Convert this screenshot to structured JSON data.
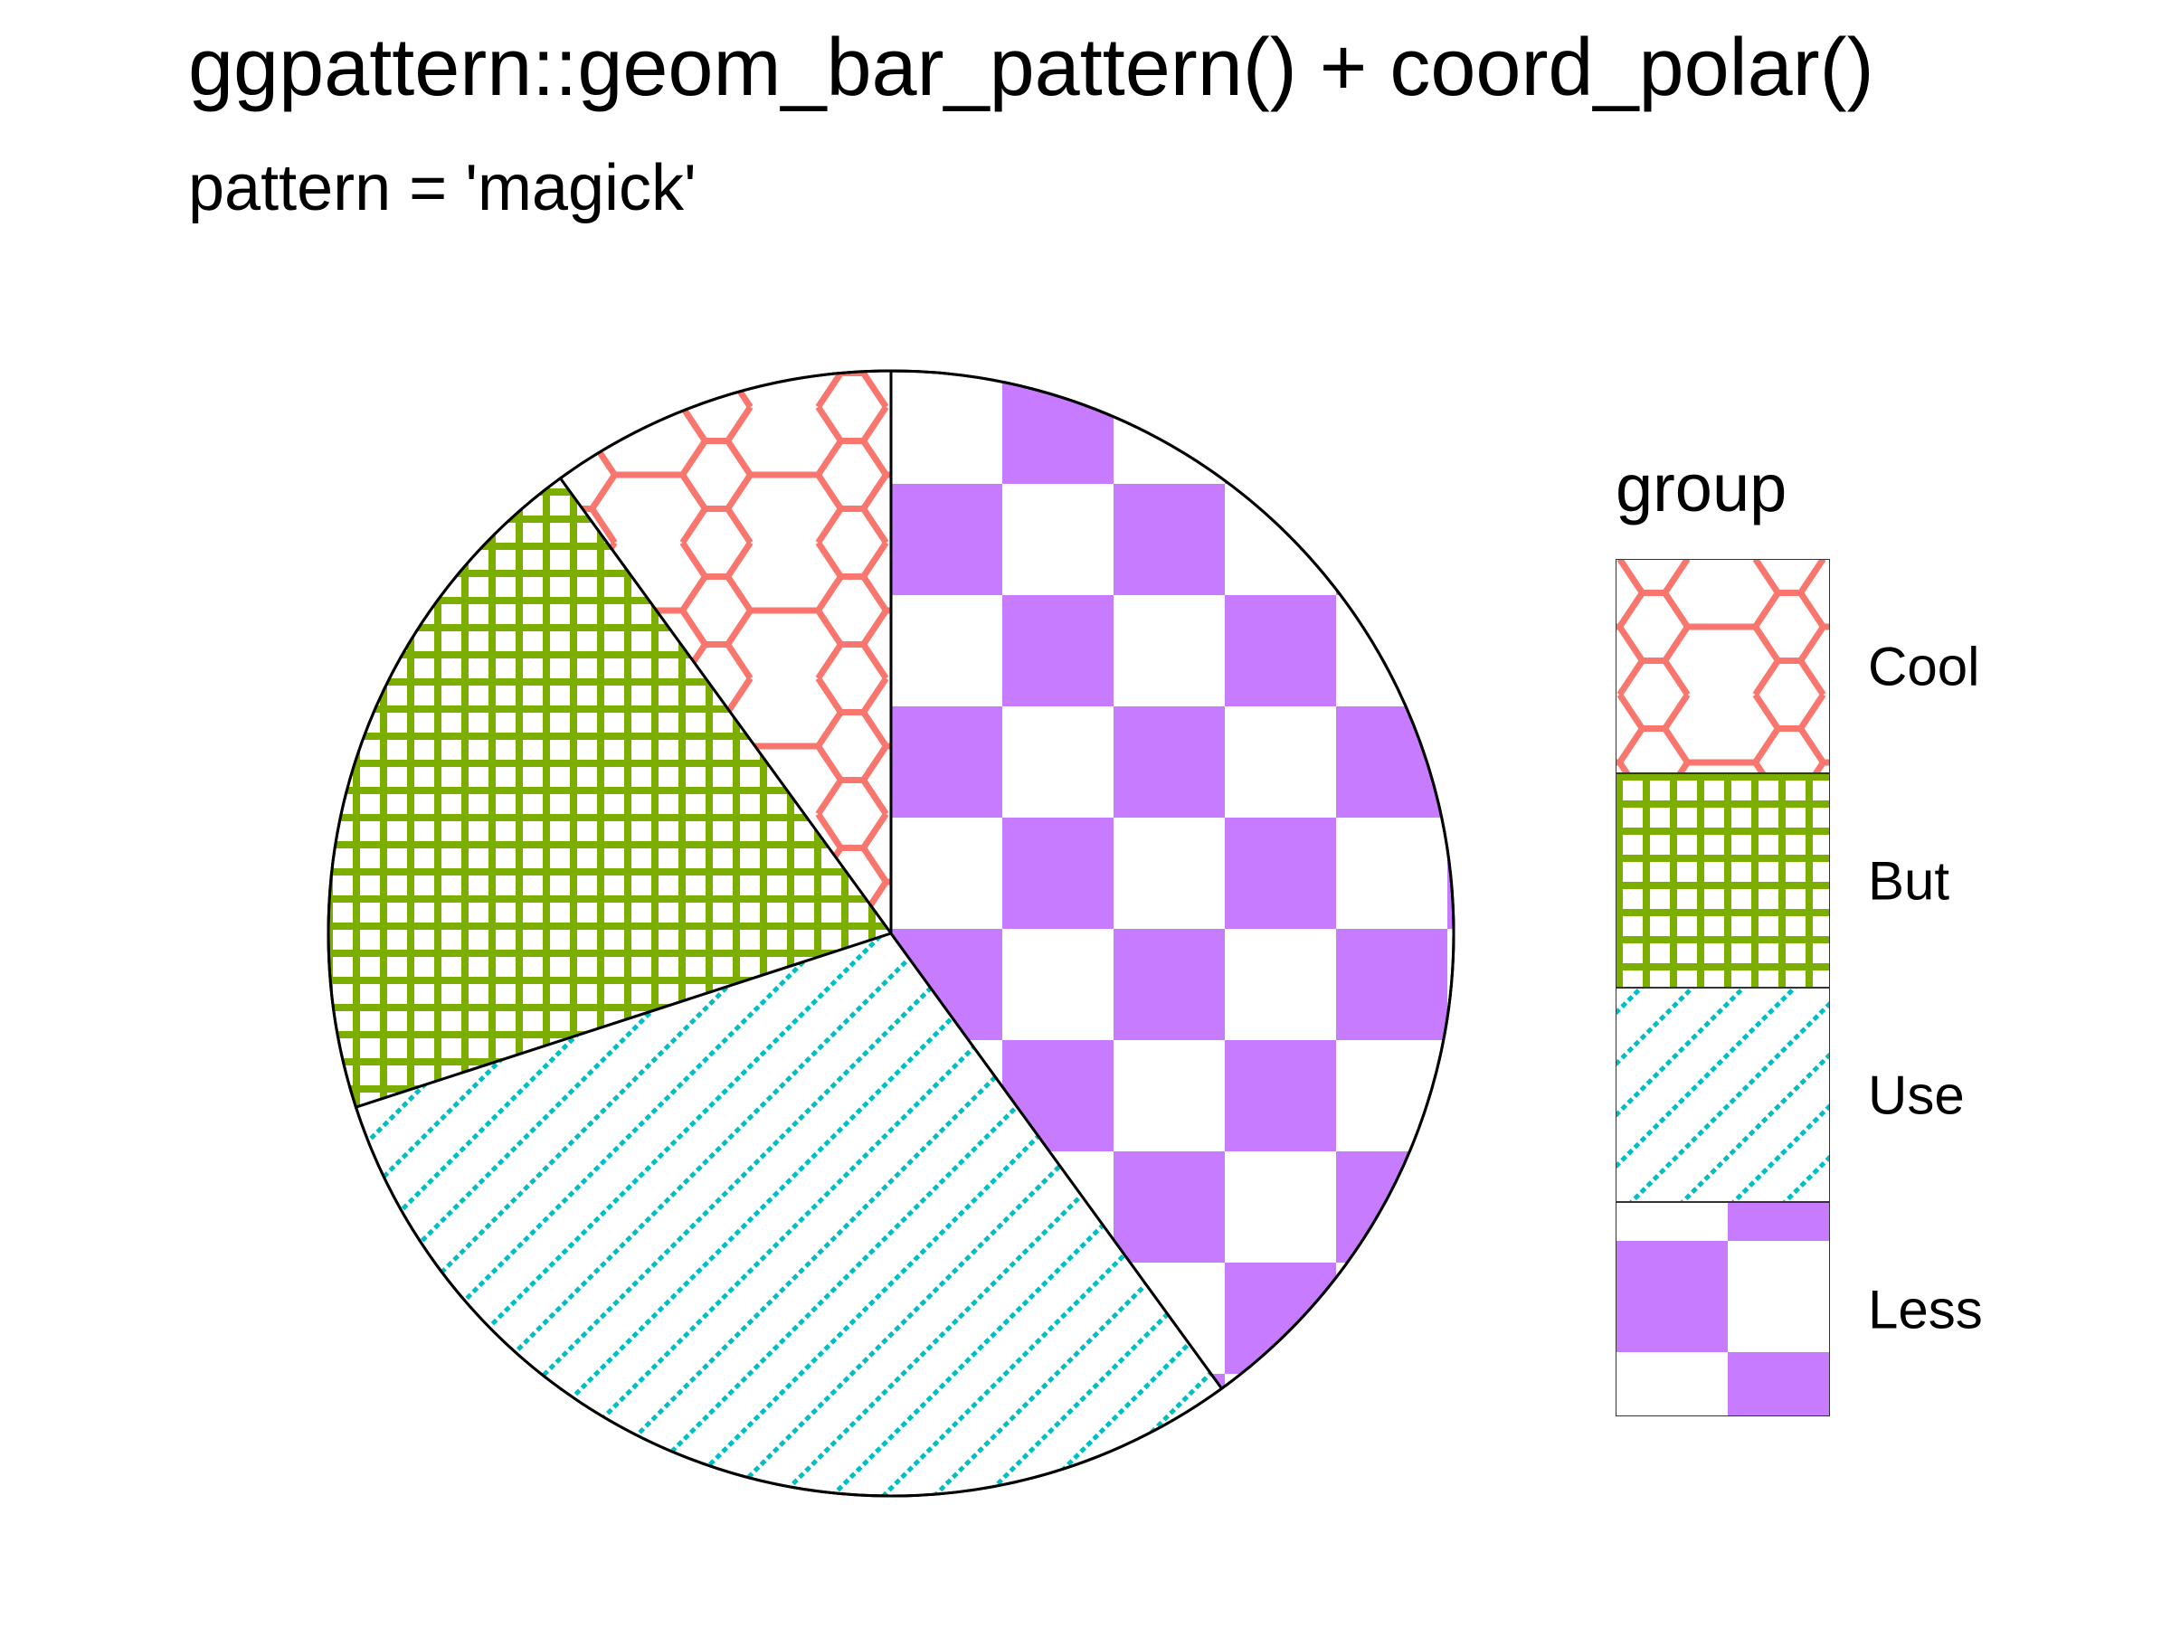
{
  "chart_data": {
    "type": "pie",
    "title": "ggpattern::geom_bar_pattern() + coord_polar()",
    "subtitle": "pattern = 'magick'",
    "categories": [
      "Cool",
      "But",
      "Use",
      "Less"
    ],
    "values": [
      10,
      20,
      30,
      40
    ],
    "legend": {
      "title": "group",
      "placement": "right",
      "entries": [
        "Cool",
        "But",
        "Use",
        "Less"
      ]
    },
    "patterns": {
      "Cool": "hexagons",
      "But": "grid",
      "Use": "diagonal-lines",
      "Less": "checkerboard"
    },
    "colors": {
      "Cool": "#F8766D",
      "But": "#7CAE00",
      "Use": "#00BFC4",
      "Less": "#C77CFF"
    }
  }
}
